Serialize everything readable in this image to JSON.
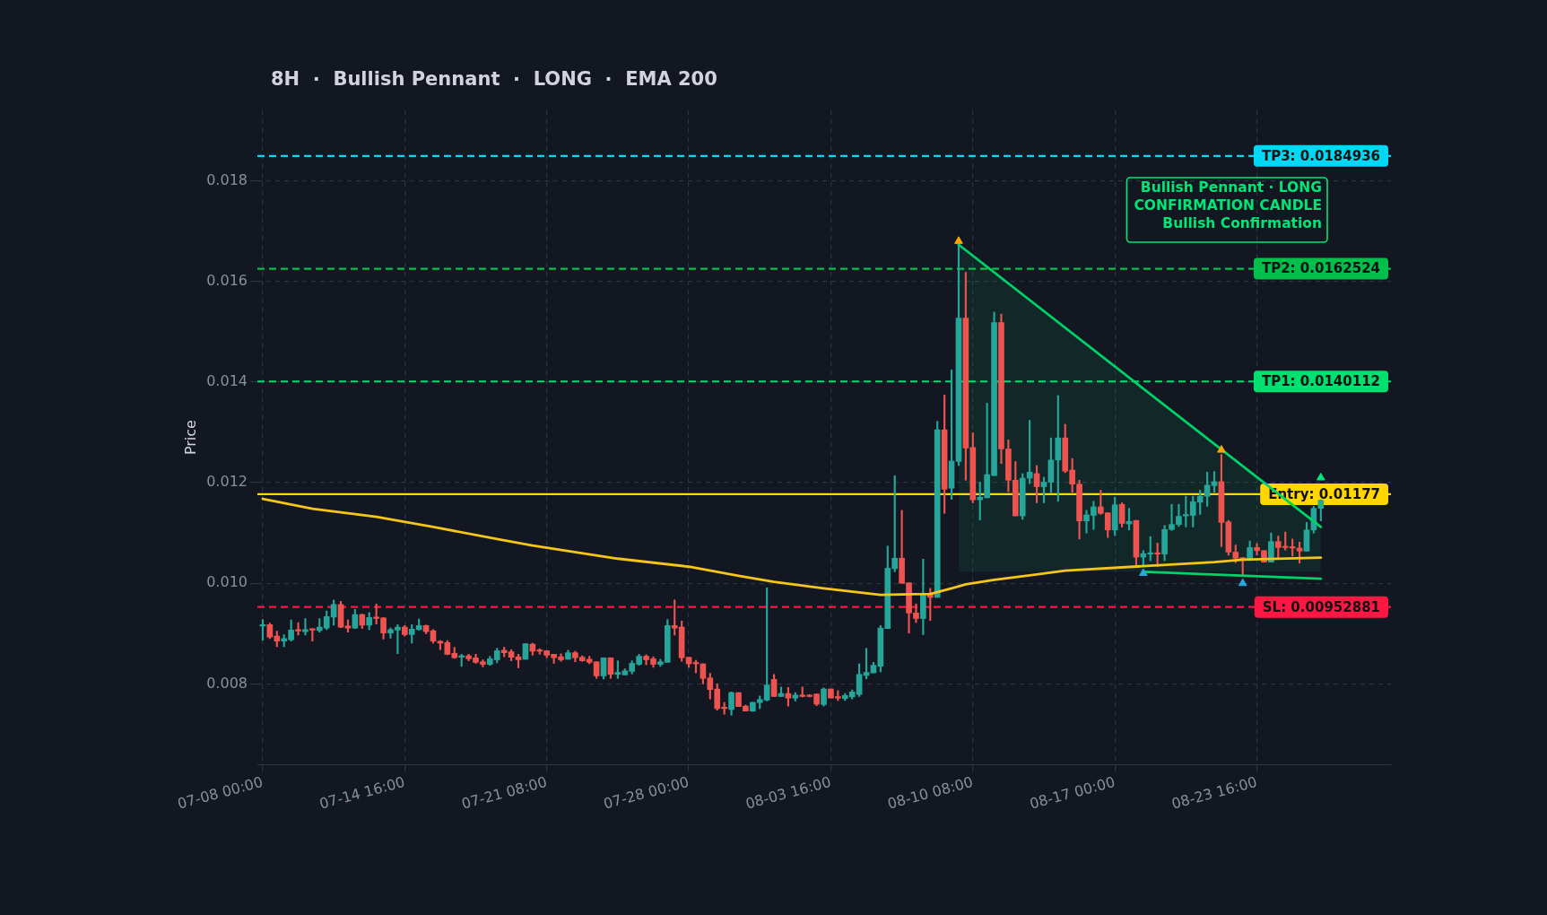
{
  "chart_data": {
    "type": "candlestick",
    "title": "8H  ·  Bullish Pennant  ·  LONG  ·  EMA 200",
    "ylabel": "Price",
    "x": [
      "--07-08T00:00",
      "--07-08T08:00",
      "--07-08T16:00",
      "--07-09T00:00",
      "--07-09T08:00",
      "--07-09T16:00",
      "--07-10T00:00",
      "--07-10T08:00",
      "--07-10T16:00",
      "--07-11T00:00",
      "--07-11T08:00",
      "--07-11T16:00",
      "--07-12T00:00",
      "--07-12T08:00",
      "--07-12T16:00",
      "--07-13T00:00",
      "--07-13T08:00",
      "--07-13T16:00",
      "--07-14T00:00",
      "--07-14T08:00",
      "--07-14T16:00",
      "--07-15T00:00",
      "--07-15T08:00",
      "--07-15T16:00",
      "--07-16T00:00",
      "--07-16T08:00",
      "--07-16T16:00",
      "--07-17T00:00",
      "--07-17T08:00",
      "--07-17T16:00",
      "--07-18T00:00",
      "--07-18T08:00",
      "--07-18T16:00",
      "--07-19T00:00",
      "--07-19T08:00",
      "--07-19T16:00",
      "--07-20T00:00",
      "--07-20T08:00",
      "--07-20T16:00",
      "--07-21T00:00",
      "--07-21T08:00",
      "--07-21T16:00",
      "--07-22T00:00",
      "--07-22T08:00",
      "--07-22T16:00",
      "--07-23T00:00",
      "--07-23T08:00",
      "--07-23T16:00",
      "--07-24T00:00",
      "--07-24T08:00",
      "--07-24T16:00",
      "--07-25T00:00",
      "--07-25T08:00",
      "--07-25T16:00",
      "--07-26T00:00",
      "--07-26T08:00",
      "--07-26T16:00",
      "--07-27T00:00",
      "--07-27T08:00",
      "--07-27T16:00",
      "--07-28T00:00",
      "--07-28T08:00",
      "--07-28T16:00",
      "--07-29T00:00",
      "--07-29T08:00",
      "--07-29T16:00",
      "--07-30T00:00",
      "--07-30T08:00",
      "--07-30T16:00",
      "--07-31T00:00",
      "--07-31T08:00",
      "--07-31T16:00",
      "--08-01T00:00",
      "--08-01T08:00",
      "--08-01T16:00",
      "--08-02T00:00",
      "--08-02T08:00",
      "--08-02T16:00",
      "--08-03T00:00",
      "--08-03T08:00",
      "--08-03T16:00",
      "--08-04T00:00",
      "--08-04T08:00",
      "--08-04T16:00",
      "--08-05T00:00",
      "--08-05T08:00",
      "--08-05T16:00",
      "--08-06T00:00",
      "--08-06T08:00",
      "--08-06T16:00",
      "--08-07T00:00",
      "--08-07T08:00",
      "--08-07T16:00",
      "--08-08T00:00",
      "--08-08T08:00",
      "--08-08T16:00",
      "--08-09T00:00",
      "--08-09T08:00",
      "--08-09T16:00",
      "--08-10T00:00",
      "--08-10T08:00",
      "--08-10T16:00",
      "--08-11T00:00",
      "--08-11T08:00",
      "--08-11T16:00",
      "--08-12T00:00",
      "--08-12T08:00",
      "--08-12T16:00",
      "--08-13T00:00",
      "--08-13T08:00",
      "--08-13T16:00",
      "--08-14T00:00",
      "--08-14T08:00",
      "--08-14T16:00",
      "--08-15T00:00",
      "--08-15T08:00",
      "--08-15T16:00",
      "--08-16T00:00",
      "--08-16T08:00",
      "--08-16T16:00",
      "--08-17T00:00",
      "--08-17T08:00",
      "--08-17T16:00",
      "--08-18T00:00",
      "--08-18T08:00",
      "--08-18T16:00",
      "--08-19T00:00",
      "--08-19T08:00",
      "--08-19T16:00",
      "--08-20T00:00",
      "--08-20T08:00",
      "--08-20T16:00",
      "--08-21T00:00",
      "--08-21T08:00",
      "--08-21T16:00",
      "--08-22T00:00",
      "--08-22T08:00",
      "--08-22T16:00",
      "--08-23T00:00",
      "--08-23T08:00",
      "--08-23T16:00",
      "--08-24T00:00",
      "--08-24T08:00",
      "--08-24T16:00",
      "--08-25T00:00",
      "--08-25T08:00",
      "--08-25T16:00",
      "--08-26T00:00",
      "--08-26T08:00",
      "--08-26T16:00"
    ],
    "ohlc": [
      [
        0.00915,
        0.00928,
        0.00887,
        0.00918
      ],
      [
        0.00918,
        0.00921,
        0.0089,
        0.00893
      ],
      [
        0.00895,
        0.00905,
        0.00874,
        0.00885
      ],
      [
        0.00885,
        0.00898,
        0.00874,
        0.0089
      ],
      [
        0.00888,
        0.00927,
        0.00885,
        0.00907
      ],
      [
        0.00908,
        0.00922,
        0.00897,
        0.00905
      ],
      [
        0.00904,
        0.0093,
        0.00897,
        0.00908
      ],
      [
        0.00908,
        0.0091,
        0.00885,
        0.00907
      ],
      [
        0.00906,
        0.0093,
        0.00903,
        0.00913
      ],
      [
        0.00911,
        0.00945,
        0.00908,
        0.00934
      ],
      [
        0.00933,
        0.00967,
        0.00917,
        0.00958
      ],
      [
        0.00958,
        0.00964,
        0.00912,
        0.00913
      ],
      [
        0.00915,
        0.00927,
        0.00903,
        0.00911
      ],
      [
        0.00911,
        0.00948,
        0.0091,
        0.00938
      ],
      [
        0.00938,
        0.00939,
        0.0091,
        0.00917
      ],
      [
        0.00917,
        0.00942,
        0.00908,
        0.00932
      ],
      [
        0.00933,
        0.00959,
        0.00919,
        0.0093
      ],
      [
        0.00931,
        0.00932,
        0.00889,
        0.00901
      ],
      [
        0.00901,
        0.00911,
        0.00891,
        0.00908
      ],
      [
        0.00907,
        0.00918,
        0.0086,
        0.00913
      ],
      [
        0.00913,
        0.00916,
        0.00895,
        0.00898
      ],
      [
        0.00898,
        0.00918,
        0.00881,
        0.00909
      ],
      [
        0.00908,
        0.00929,
        0.00907,
        0.00916
      ],
      [
        0.00916,
        0.00917,
        0.009,
        0.00904
      ],
      [
        0.00906,
        0.00908,
        0.00881,
        0.00885
      ],
      [
        0.00885,
        0.00886,
        0.00868,
        0.00881
      ],
      [
        0.00882,
        0.00886,
        0.00858,
        0.00859
      ],
      [
        0.00861,
        0.00873,
        0.00851,
        0.00852
      ],
      [
        0.00853,
        0.00859,
        0.00835,
        0.00856
      ],
      [
        0.00856,
        0.00859,
        0.00846,
        0.0085
      ],
      [
        0.00852,
        0.00859,
        0.00841,
        0.00843
      ],
      [
        0.00844,
        0.00848,
        0.00834,
        0.00839
      ],
      [
        0.00839,
        0.00855,
        0.00837,
        0.0085
      ],
      [
        0.00848,
        0.00871,
        0.00842,
        0.00866
      ],
      [
        0.00867,
        0.00873,
        0.00854,
        0.00862
      ],
      [
        0.00864,
        0.00868,
        0.00846,
        0.00853
      ],
      [
        0.00854,
        0.00859,
        0.00832,
        0.00848
      ],
      [
        0.00849,
        0.0088,
        0.00849,
        0.0088
      ],
      [
        0.00879,
        0.00881,
        0.00857,
        0.00865
      ],
      [
        0.00866,
        0.0087,
        0.00859,
        0.00865
      ],
      [
        0.00866,
        0.00866,
        0.00852,
        0.00857
      ],
      [
        0.00859,
        0.00859,
        0.00841,
        0.00852
      ],
      [
        0.00854,
        0.0086,
        0.00845,
        0.00848
      ],
      [
        0.00849,
        0.00867,
        0.00849,
        0.00862
      ],
      [
        0.00862,
        0.00865,
        0.00844,
        0.00852
      ],
      [
        0.00853,
        0.00856,
        0.00845,
        0.00846
      ],
      [
        0.00849,
        0.00855,
        0.0084,
        0.00843
      ],
      [
        0.00844,
        0.00844,
        0.00811,
        0.00816
      ],
      [
        0.00816,
        0.00852,
        0.0081,
        0.00852
      ],
      [
        0.00852,
        0.00852,
        0.00811,
        0.00819
      ],
      [
        0.00819,
        0.00846,
        0.00811,
        0.00823
      ],
      [
        0.00818,
        0.0083,
        0.00818,
        0.00826
      ],
      [
        0.00825,
        0.00846,
        0.0082,
        0.00841
      ],
      [
        0.00839,
        0.00859,
        0.00837,
        0.00855
      ],
      [
        0.00855,
        0.00858,
        0.00838,
        0.00848
      ],
      [
        0.0085,
        0.00854,
        0.00833,
        0.00839
      ],
      [
        0.00839,
        0.00849,
        0.00835,
        0.00844
      ],
      [
        0.00843,
        0.00928,
        0.00843,
        0.00916
      ],
      [
        0.00916,
        0.00967,
        0.00897,
        0.00911
      ],
      [
        0.00913,
        0.00925,
        0.00845,
        0.00852
      ],
      [
        0.00853,
        0.00853,
        0.00833,
        0.0084
      ],
      [
        0.00841,
        0.00847,
        0.00822,
        0.0084
      ],
      [
        0.0084,
        0.0084,
        0.008,
        0.00811
      ],
      [
        0.00812,
        0.00821,
        0.0077,
        0.00789
      ],
      [
        0.0079,
        0.008,
        0.00748,
        0.00751
      ],
      [
        0.00752,
        0.00763,
        0.0074,
        0.00751
      ],
      [
        0.00749,
        0.00784,
        0.00738,
        0.00783
      ],
      [
        0.00783,
        0.00783,
        0.00755,
        0.00755
      ],
      [
        0.00756,
        0.00758,
        0.00746,
        0.00746
      ],
      [
        0.00746,
        0.00764,
        0.00745,
        0.00763
      ],
      [
        0.00763,
        0.00776,
        0.00751,
        0.00769
      ],
      [
        0.00768,
        0.00991,
        0.00766,
        0.00798
      ],
      [
        0.00809,
        0.00819,
        0.00775,
        0.00775
      ],
      [
        0.00775,
        0.00794,
        0.00775,
        0.00781
      ],
      [
        0.00781,
        0.00793,
        0.00756,
        0.00772
      ],
      [
        0.00772,
        0.00783,
        0.00766,
        0.00778
      ],
      [
        0.00778,
        0.00794,
        0.00774,
        0.00775
      ],
      [
        0.00777,
        0.00779,
        0.00774,
        0.00775
      ],
      [
        0.0078,
        0.0078,
        0.00757,
        0.0076
      ],
      [
        0.00759,
        0.00792,
        0.00756,
        0.0079
      ],
      [
        0.0079,
        0.0079,
        0.00772,
        0.00772
      ],
      [
        0.00773,
        0.00787,
        0.00767,
        0.00772
      ],
      [
        0.00771,
        0.00781,
        0.00767,
        0.00777
      ],
      [
        0.00774,
        0.00788,
        0.0077,
        0.00784
      ],
      [
        0.00779,
        0.0084,
        0.00775,
        0.00819
      ],
      [
        0.00817,
        0.00871,
        0.0081,
        0.00823
      ],
      [
        0.00822,
        0.00843,
        0.00822,
        0.00837
      ],
      [
        0.00835,
        0.00916,
        0.00824,
        0.00911
      ],
      [
        0.0091,
        0.01074,
        0.0091,
        0.0103
      ],
      [
        0.01029,
        0.01214,
        0.01023,
        0.0105
      ],
      [
        0.0105,
        0.01145,
        0.01,
        0.01
      ],
      [
        0.01001,
        0.01001,
        0.00901,
        0.00941
      ],
      [
        0.00941,
        0.00959,
        0.00922,
        0.0093
      ],
      [
        0.0093,
        0.01048,
        0.00898,
        0.0098
      ],
      [
        0.0098,
        0.0099,
        0.00926,
        0.00972
      ],
      [
        0.00972,
        0.01322,
        0.00972,
        0.01305
      ],
      [
        0.01305,
        0.01374,
        0.01139,
        0.01187
      ],
      [
        0.01189,
        0.01424,
        0.01167,
        0.01243
      ],
      [
        0.01242,
        0.01673,
        0.01234,
        0.01527
      ],
      [
        0.01527,
        0.01618,
        0.01205,
        0.01269
      ],
      [
        0.0127,
        0.01299,
        0.0116,
        0.01166
      ],
      [
        0.01166,
        0.01201,
        0.01126,
        0.01171
      ],
      [
        0.0117,
        0.01358,
        0.0117,
        0.01216
      ],
      [
        0.01214,
        0.01539,
        0.01214,
        0.01518
      ],
      [
        0.01518,
        0.01535,
        0.01238,
        0.01267
      ],
      [
        0.01267,
        0.01285,
        0.01182,
        0.01205
      ],
      [
        0.01205,
        0.01242,
        0.01134,
        0.01134
      ],
      [
        0.01134,
        0.01218,
        0.01127,
        0.01209
      ],
      [
        0.01209,
        0.01324,
        0.01198,
        0.01221
      ],
      [
        0.01218,
        0.01234,
        0.0116,
        0.01192
      ],
      [
        0.01192,
        0.01211,
        0.0116,
        0.01201
      ],
      [
        0.01201,
        0.01289,
        0.0118,
        0.01245
      ],
      [
        0.01245,
        0.01373,
        0.01163,
        0.01289
      ],
      [
        0.01289,
        0.01316,
        0.0122,
        0.01223
      ],
      [
        0.01225,
        0.01248,
        0.01181,
        0.01197
      ],
      [
        0.01197,
        0.01205,
        0.01088,
        0.01124
      ],
      [
        0.01124,
        0.01145,
        0.011,
        0.01136
      ],
      [
        0.01135,
        0.01163,
        0.01107,
        0.01152
      ],
      [
        0.01152,
        0.01185,
        0.01137,
        0.01139
      ],
      [
        0.0114,
        0.0114,
        0.01091,
        0.01106
      ],
      [
        0.01106,
        0.01171,
        0.01095,
        0.01156
      ],
      [
        0.01157,
        0.0116,
        0.01112,
        0.01119
      ],
      [
        0.01118,
        0.01149,
        0.01106,
        0.01123
      ],
      [
        0.01125,
        0.01125,
        0.01036,
        0.01052
      ],
      [
        0.01052,
        0.01065,
        0.01036,
        0.01059
      ],
      [
        0.01058,
        0.01093,
        0.01045,
        0.0106
      ],
      [
        0.0106,
        0.0108,
        0.01033,
        0.01058
      ],
      [
        0.01058,
        0.01115,
        0.01045,
        0.01107
      ],
      [
        0.01107,
        0.01157,
        0.01105,
        0.01117
      ],
      [
        0.01117,
        0.01157,
        0.01113,
        0.01133
      ],
      [
        0.01134,
        0.01173,
        0.01112,
        0.01136
      ],
      [
        0.01135,
        0.01173,
        0.01112,
        0.01162
      ],
      [
        0.01161,
        0.01185,
        0.01137,
        0.01173
      ],
      [
        0.01173,
        0.01221,
        0.01153,
        0.01195
      ],
      [
        0.01194,
        0.01222,
        0.01181,
        0.01202
      ],
      [
        0.01202,
        0.01256,
        0.01073,
        0.01121
      ],
      [
        0.01122,
        0.01125,
        0.01056,
        0.01062
      ],
      [
        0.01062,
        0.01076,
        0.01041,
        0.0105
      ],
      [
        0.01051,
        0.01051,
        0.01015,
        0.01048
      ],
      [
        0.01048,
        0.01084,
        0.01045,
        0.01071
      ],
      [
        0.01071,
        0.01079,
        0.01056,
        0.01065
      ],
      [
        0.01065,
        0.01065,
        0.01042,
        0.01042
      ],
      [
        0.01042,
        0.011,
        0.01042,
        0.01083
      ],
      [
        0.01083,
        0.01094,
        0.01051,
        0.01071
      ],
      [
        0.01072,
        0.01102,
        0.01066,
        0.01071
      ],
      [
        0.01072,
        0.01088,
        0.01054,
        0.0107
      ],
      [
        0.0107,
        0.01082,
        0.0104,
        0.01064
      ],
      [
        0.01064,
        0.01121,
        0.01064,
        0.01106
      ],
      [
        0.01106,
        0.01153,
        0.011,
        0.01149
      ],
      [
        0.01149,
        0.01166,
        0.01124,
        0.01165
      ]
    ],
    "colors": [
      "#26a69a",
      "#ef5350",
      "#ef5350",
      "#26a69a",
      "#26a69a",
      "#ef5350",
      "#26a69a",
      "#ef5350",
      "#26a69a",
      "#26a69a",
      "#26a69a",
      "#ef5350",
      "#ef5350",
      "#26a69a",
      "#ef5350",
      "#26a69a",
      "#ef5350",
      "#ef5350",
      "#26a69a",
      "#26a69a",
      "#ef5350",
      "#26a69a",
      "#26a69a",
      "#ef5350",
      "#ef5350",
      "#ef5350",
      "#ef5350",
      "#ef5350",
      "#26a69a",
      "#ef5350",
      "#ef5350",
      "#ef5350",
      "#26a69a",
      "#26a69a",
      "#ef5350",
      "#ef5350",
      "#ef5350",
      "#26a69a",
      "#ef5350",
      "#ef5350",
      "#ef5350",
      "#ef5350",
      "#ef5350",
      "#26a69a",
      "#ef5350",
      "#ef5350",
      "#ef5350",
      "#ef5350",
      "#26a69a",
      "#ef5350",
      "#26a69a",
      "#26a69a",
      "#26a69a",
      "#26a69a",
      "#ef5350",
      "#ef5350",
      "#26a69a",
      "#26a69a",
      "#ef5350",
      "#ef5350",
      "#ef5350",
      "#ef5350",
      "#ef5350",
      "#ef5350",
      "#ef5350",
      "#ef5350",
      "#26a69a",
      "#ef5350",
      "#ef5350",
      "#26a69a",
      "#26a69a",
      "#26a69a",
      "#ef5350",
      "#26a69a",
      "#ef5350",
      "#26a69a",
      "#ef5350",
      "#ef5350",
      "#ef5350",
      "#26a69a",
      "#ef5350",
      "#ef5350",
      "#26a69a",
      "#26a69a",
      "#26a69a",
      "#26a69a",
      "#26a69a",
      "#26a69a",
      "#26a69a",
      "#26a69a",
      "#ef5350",
      "#ef5350",
      "#ef5350",
      "#26a69a",
      "#ef5350",
      "#26a69a",
      "#ef5350",
      "#26a69a",
      "#26a69a",
      "#ef5350",
      "#ef5350",
      "#26a69a",
      "#26a69a",
      "#26a69a",
      "#ef5350",
      "#ef5350",
      "#ef5350",
      "#26a69a",
      "#26a69a",
      "#ef5350",
      "#26a69a",
      "#26a69a",
      "#26a69a",
      "#ef5350",
      "#ef5350",
      "#ef5350",
      "#26a69a",
      "#26a69a",
      "#ef5350",
      "#ef5350",
      "#26a69a",
      "#ef5350",
      "#26a69a",
      "#ef5350",
      "#26a69a",
      "#26a69a",
      "#ef5350",
      "#26a69a",
      "#26a69a",
      "#26a69a",
      "#26a69a",
      "#26a69a",
      "#26a69a",
      "#26a69a",
      "#26a69a",
      "#ef5350",
      "#ef5350",
      "#ef5350",
      "#ef5350",
      "#26a69a",
      "#ef5350",
      "#ef5350",
      "#26a69a",
      "#ef5350",
      "#ef5350",
      "#ef5350",
      "#ef5350",
      "#26a69a",
      "#26a69a",
      "#26a69a"
    ],
    "series": [
      {
        "type": "line",
        "color": "#f5c518",
        "x": [
          "--07-08T00:00",
          "--07-10T08:00",
          "--07-13T08:00",
          "--07-16T00:00",
          "--07-19T00:00",
          "--07-20T16:00",
          "--07-24T16:00",
          "--07-28T00:00",
          "--07-30T08:00",
          "--08-01T00:00",
          "--08-03T08:00",
          "--08-06T00:00",
          "--08-08T08:00",
          "--08-09T08:00",
          "--08-10T00:00",
          "--08-11T08:00",
          "--08-13T00:00",
          "--08-14T16:00",
          "--08-18T16:00",
          "--08-21T16:00",
          "--08-23T00:00",
          "--08-26T16:00"
        ],
        "values": [
          0.01168,
          0.01148,
          0.01132,
          0.01112,
          0.01088,
          0.01075,
          0.01049,
          0.01033,
          0.01015,
          0.01003,
          0.0099,
          0.00977,
          0.00979,
          0.0099,
          0.00998,
          0.01007,
          0.01016,
          0.01025,
          0.01035,
          0.01042,
          0.01047,
          0.01051
        ]
      },
      {
        "type": "line",
        "color": "#00d26a",
        "x": [
          "--08-09T16:00",
          "--08-26T16:00"
        ],
        "values": [
          0.01673,
          0.01112
        ],
        "lower": [
          0.01023,
          0.01023
        ],
        "upper": [
          0.01673,
          0.01112
        ]
      },
      {
        "type": "line",
        "color": "#00d26a",
        "x": [
          "--08-18T08:00",
          "--08-26T16:00"
        ],
        "values": [
          0.01023,
          0.01009
        ]
      },
      {
        "type": "scatter",
        "color": "#ffa500",
        "marker": "triangle",
        "x": [
          "--08-09T16:00",
          "--08-22T00:00"
        ],
        "values": [
          0.0168,
          0.01265
        ]
      },
      {
        "type": "scatter",
        "color": "#29a8e0",
        "marker": "triangle",
        "x": [
          "--08-18T08:00",
          "--08-23T00:00"
        ],
        "values": [
          0.0102,
          0.01
        ]
      },
      {
        "type": "scatter",
        "color": "#00e676",
        "marker": "triangle",
        "x": [
          "--08-26T16:00"
        ],
        "values": [
          0.0121
        ]
      }
    ],
    "ref_lines": [
      {
        "axis": "y",
        "value": 0.0184936,
        "label": "TP3: 0.0184936",
        "color": "#00d8f5",
        "line_style": "dashed"
      },
      {
        "axis": "y",
        "value": 0.0162524,
        "label": "TP2: 0.0162524",
        "color": "#00c04b",
        "line_style": "dashed"
      },
      {
        "axis": "y",
        "value": 0.0140112,
        "label": "TP1: 0.0140112",
        "color": "#00e070",
        "line_style": "dashed"
      },
      {
        "axis": "y",
        "value": 0.01177,
        "label": "Entry: 0.01177",
        "color": "#ffd600",
        "line_style": "solid"
      },
      {
        "axis": "y",
        "value": 0.00952881,
        "label": "SL: 0.00952881",
        "color": "#ff1744",
        "line_style": "dashed"
      }
    ],
    "annotations": [
      "Bullish Pennant · LONG",
      "CONFIRMATION CANDLE",
      "Bullish Confirmation"
    ],
    "xlim": [
      "--07-07T18:00",
      "--08-29T23:00"
    ],
    "xticks": [
      {
        "value": "--07-08T00:00",
        "label": "07-08 00:00"
      },
      {
        "value": "--07-14T16:00",
        "label": "07-14 16:00"
      },
      {
        "value": "--07-21T08:00",
        "label": "07-21 08:00"
      },
      {
        "value": "--07-28T00:00",
        "label": "07-28 00:00"
      },
      {
        "value": "--08-03T16:00",
        "label": "08-03 16:00"
      },
      {
        "value": "--08-10T08:00",
        "label": "08-10 08:00"
      },
      {
        "value": "--08-17T00:00",
        "label": "08-17 00:00"
      },
      {
        "value": "--08-23T16:00",
        "label": "08-23 16:00"
      }
    ],
    "ylim": [
      0.0064,
      0.0194
    ],
    "yticks": [
      0.008,
      {
        "value": 0.01,
        "label": "0.010"
      },
      0.012,
      0.014,
      0.016,
      0.018
    ],
    "grid": true
  }
}
